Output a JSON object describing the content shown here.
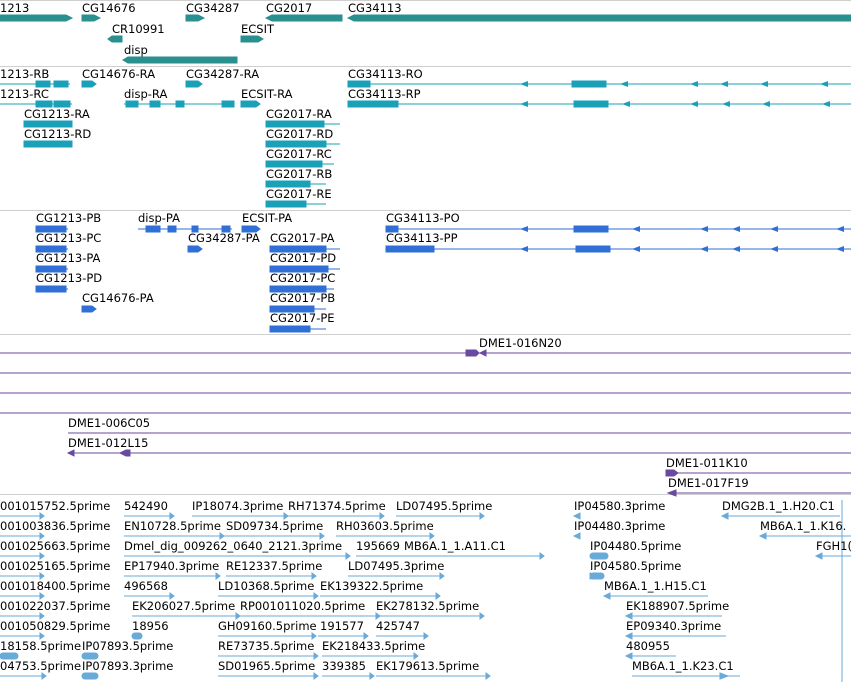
{
  "tracks": {
    "gene_span": {
      "color": "#2a8f8f",
      "labels": [
        "1213",
        "CG14676",
        "CG34287",
        "CG2017",
        "CG34113",
        "CR10991",
        "ECSIT",
        "disp"
      ]
    },
    "transcripts_a": {
      "color": "#1aa0b8",
      "labels": [
        "1213-RB",
        "CG14676-RA",
        "CG34287-RA",
        "CG34113-RO",
        "1213-RC",
        "disp-RA",
        "ECSIT-RA",
        "CG34113-RP",
        "CG1213-RA",
        "CG2017-RA",
        "CG1213-RD",
        "CG2017-RD",
        "CG2017-RC",
        "CG2017-RB",
        "CG2017-RE"
      ]
    },
    "transcripts_b": {
      "color": "#2f6fd6",
      "labels": [
        "CG1213-PB",
        "disp-PA",
        "ECSIT-PA",
        "CG34113-PO",
        "CG1213-PC",
        "CG34287-PA",
        "CG2017-PA",
        "CG34113-PP",
        "CG1213-PA",
        "CG2017-PD",
        "CG1213-PD",
        "CG2017-PC",
        "CG14676-PA",
        "CG2017-PB",
        "CG2017-PE"
      ]
    },
    "bac_clones": {
      "color": "#6a4aa0",
      "labels": [
        "DME1-016N20",
        "DME1-006C05",
        "DME1-012L15",
        "DME1-011K10",
        "DME1-017F19"
      ]
    },
    "cdna_ests": {
      "color": "#6aaad8",
      "labels": [
        "001015752.5prime",
        "542490",
        "IP18074.3prime",
        "RH71374.5prime",
        "LD07495.5prime",
        "IP04580.3prime",
        "DMG2B.1_1.H20.C1",
        "001003836.5prime",
        "EN10728.5prime",
        "SD09734.5prime",
        "RH03603.5prime",
        "IP04480.3prime",
        "MB6A.1_1.K16.",
        "001025663.5prime",
        "Dmel_dig_009262_0640_2121.3prime",
        "195669",
        "MB6A.1_1.A11.C1",
        "IP04480.5prime",
        "FGH1(",
        "001025165.5prime",
        "EP17940.3prime",
        "RE12337.5prime",
        "LD07495.3prime",
        "IP04580.5prime",
        "001018400.5prime",
        "496568",
        "LD10368.5prime",
        "EK139322.5prime",
        "MB6A.1_1.H15.C1",
        "001022037.5prime",
        "EK206027.5prime",
        "RP001011020.5prime",
        "EK278132.5prime",
        "EK188907.5prime",
        "001050829.5prime",
        "18956",
        "GH09160.5prime",
        "191577",
        "425747",
        "EP09340.3prime",
        "18158.5prime",
        "IP07893.5prime",
        "RE73735.5prime",
        "EK218433.5prime",
        "480955",
        "04753.5prime",
        "IP07893.3prime",
        "SD01965.5prime",
        "339385",
        "EK179613.5prime",
        "MB6A.1_1.K23.C1"
      ]
    }
  }
}
